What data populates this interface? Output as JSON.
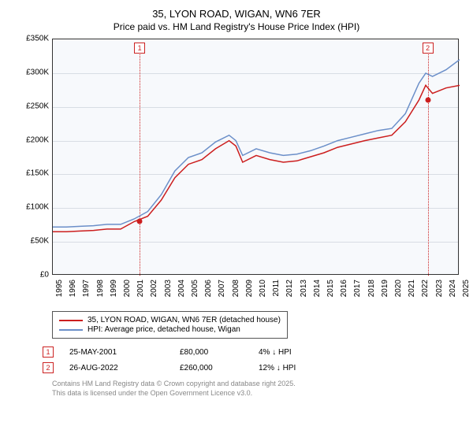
{
  "title": "35, LYON ROAD, WIGAN, WN6 7ER",
  "subtitle": "Price paid vs. HM Land Registry's House Price Index (HPI)",
  "chart": {
    "type": "line",
    "background_color": "#f7f9fc",
    "grid_color": "#d8dde4",
    "ylim": [
      0,
      350
    ],
    "ytick_step": 50,
    "ytick_labels": [
      "£0",
      "£50K",
      "£100K",
      "£150K",
      "£200K",
      "£250K",
      "£300K",
      "£350K"
    ],
    "xmin": 1995,
    "xmax": 2025,
    "xtick_step": 1,
    "xtick_labels": [
      "1995",
      "1996",
      "1997",
      "1998",
      "1999",
      "2000",
      "2001",
      "2002",
      "2003",
      "2004",
      "2005",
      "2006",
      "2007",
      "2008",
      "2009",
      "2010",
      "2011",
      "2012",
      "2013",
      "2014",
      "2015",
      "2016",
      "2017",
      "2018",
      "2019",
      "2020",
      "2021",
      "2022",
      "2023",
      "2024",
      "2025"
    ],
    "series": [
      {
        "name": "hpi",
        "label": "HPI: Average price, detached house, Wigan",
        "color": "#6b8fc9",
        "width": 1.5,
        "data": [
          [
            1995,
            72
          ],
          [
            1996,
            72
          ],
          [
            1997,
            73
          ],
          [
            1998,
            74
          ],
          [
            1999,
            76
          ],
          [
            2000,
            76
          ],
          [
            2001,
            84
          ],
          [
            2002,
            95
          ],
          [
            2003,
            120
          ],
          [
            2004,
            155
          ],
          [
            2005,
            175
          ],
          [
            2006,
            182
          ],
          [
            2007,
            198
          ],
          [
            2008,
            208
          ],
          [
            2008.5,
            200
          ],
          [
            2009,
            178
          ],
          [
            2010,
            188
          ],
          [
            2011,
            182
          ],
          [
            2012,
            178
          ],
          [
            2013,
            180
          ],
          [
            2014,
            185
          ],
          [
            2015,
            192
          ],
          [
            2016,
            200
          ],
          [
            2017,
            205
          ],
          [
            2018,
            210
          ],
          [
            2019,
            215
          ],
          [
            2020,
            218
          ],
          [
            2021,
            240
          ],
          [
            2022,
            285
          ],
          [
            2022.5,
            300
          ],
          [
            2023,
            295
          ],
          [
            2024,
            305
          ],
          [
            2025,
            320
          ]
        ]
      },
      {
        "name": "property",
        "label": "35, LYON ROAD, WIGAN, WN6 7ER (detached house)",
        "color": "#cc1e1e",
        "width": 1.5,
        "data": [
          [
            1995,
            65
          ],
          [
            1996,
            65
          ],
          [
            1997,
            66
          ],
          [
            1998,
            67
          ],
          [
            1999,
            69
          ],
          [
            2000,
            69
          ],
          [
            2001,
            80
          ],
          [
            2002,
            88
          ],
          [
            2003,
            112
          ],
          [
            2004,
            145
          ],
          [
            2005,
            165
          ],
          [
            2006,
            172
          ],
          [
            2007,
            188
          ],
          [
            2008,
            200
          ],
          [
            2008.5,
            192
          ],
          [
            2009,
            168
          ],
          [
            2010,
            178
          ],
          [
            2011,
            172
          ],
          [
            2012,
            168
          ],
          [
            2013,
            170
          ],
          [
            2014,
            176
          ],
          [
            2015,
            182
          ],
          [
            2016,
            190
          ],
          [
            2017,
            195
          ],
          [
            2018,
            200
          ],
          [
            2019,
            204
          ],
          [
            2020,
            208
          ],
          [
            2021,
            228
          ],
          [
            2022,
            260
          ],
          [
            2022.5,
            282
          ],
          [
            2023,
            270
          ],
          [
            2024,
            278
          ],
          [
            2025,
            282
          ]
        ]
      }
    ],
    "markers": [
      {
        "n": "1",
        "year": 2001.4,
        "value": 80,
        "color": "#cc1e1e"
      },
      {
        "n": "2",
        "year": 2022.65,
        "value": 260,
        "color": "#cc1e1e"
      }
    ]
  },
  "legend": {
    "items": [
      {
        "color": "#cc1e1e",
        "label": "35, LYON ROAD, WIGAN, WN6 7ER (detached house)"
      },
      {
        "color": "#6b8fc9",
        "label": "HPI: Average price, detached house, Wigan"
      }
    ]
  },
  "sales": [
    {
      "n": "1",
      "date": "25-MAY-2001",
      "price": "£80,000",
      "delta": "4% ↓ HPI"
    },
    {
      "n": "2",
      "date": "26-AUG-2022",
      "price": "£260,000",
      "delta": "12% ↓ HPI"
    }
  ],
  "attribution": {
    "line1": "Contains HM Land Registry data © Crown copyright and database right 2025.",
    "line2": "This data is licensed under the Open Government Licence v3.0."
  }
}
